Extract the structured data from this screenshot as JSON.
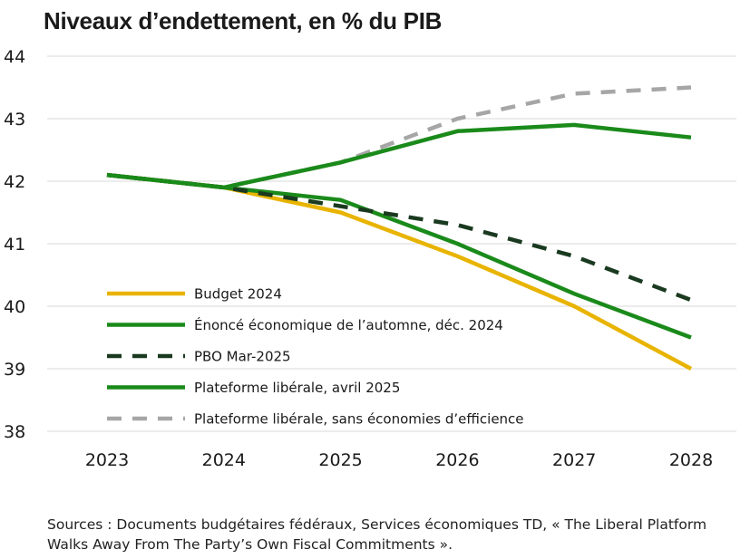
{
  "title": "Niveaux d’endettement, en % du PIB",
  "source": "Sources : Documents budgétaires fédéraux, Services économiques TD, « The Liberal Platform Walks Away From The Party’s Own Fiscal Commitments ».",
  "chart_data": {
    "type": "line",
    "title": "Niveaux d’endettement, en % du PIB",
    "xlabel": "",
    "ylabel": "",
    "categories": [
      "2023",
      "2024",
      "2025",
      "2026",
      "2027",
      "2028"
    ],
    "ylim": [
      38,
      44
    ],
    "yticks": [
      38,
      39,
      40,
      41,
      42,
      43,
      44
    ],
    "grid": "horizontal",
    "legend_position": "bottom-left",
    "series": [
      {
        "name": "Plateforme libérale, sans économies d’efficience",
        "color": "#a6a6a6",
        "dashed": true,
        "values": [
          42.1,
          41.9,
          42.3,
          43.0,
          43.4,
          43.5
        ]
      },
      {
        "name": "Budget 2024",
        "color": "#e8b400",
        "dashed": false,
        "values": [
          42.1,
          41.9,
          41.5,
          40.8,
          40.0,
          39.0
        ]
      },
      {
        "name": "Énoncé économique de l’automne, déc. 2024",
        "color": "#1a8a1a",
        "dashed": false,
        "values": [
          42.1,
          41.9,
          41.7,
          41.0,
          40.2,
          39.5
        ]
      },
      {
        "name": "PBO Mar-2025",
        "color": "#1a3a20",
        "dashed": true,
        "values": [
          42.1,
          41.9,
          41.6,
          41.3,
          40.8,
          40.1
        ]
      },
      {
        "name": "Plateforme libérale, avril 2025",
        "color": "#1a8a1a",
        "dashed": false,
        "values": [
          42.1,
          41.9,
          42.3,
          42.8,
          42.9,
          42.7
        ]
      }
    ],
    "legend_order": [
      1,
      2,
      3,
      4,
      0
    ]
  }
}
